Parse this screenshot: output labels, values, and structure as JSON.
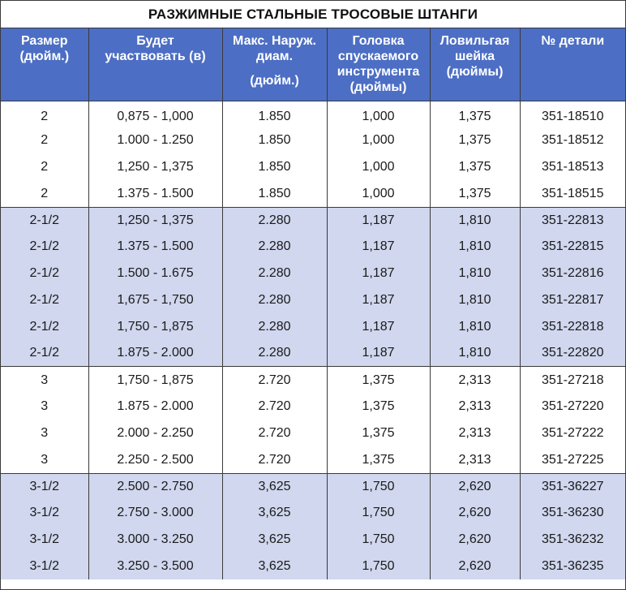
{
  "title": "РАЗЖИМНЫЕ СТАЛЬНЫЕ ТРОСОВЫЕ ШТАНГИ",
  "headers": {
    "size": [
      "Размер",
      "(дюйм.)"
    ],
    "engage": [
      "Будет",
      "участвовать (в)"
    ],
    "max_od": [
      "Макс. Наруж.",
      "диам.",
      "(дюйм.)"
    ],
    "head": [
      "Головка",
      "спускаемого",
      "инструмента",
      "(дюймы)"
    ],
    "neck": [
      "Ловильгая",
      "шейка",
      "(дюймы)"
    ],
    "part": [
      "№ детали"
    ]
  },
  "colors": {
    "header_bg": "#4c6ec4",
    "shade_bg": "#d0d7ee",
    "border": "#3a3a3a"
  },
  "rows": [
    {
      "size": "2",
      "engage": "0,875 - 1,000",
      "max_od": "1.850",
      "head": "1,000",
      "neck": "1,375",
      "part": "351-18510"
    },
    {
      "size": "2",
      "engage": "1.000 - 1.250",
      "max_od": "1.850",
      "head": "1,000",
      "neck": "1,375",
      "part": "351-18512"
    },
    {
      "size": "2",
      "engage": "1,250 - 1,375",
      "max_od": "1.850",
      "head": "1,000",
      "neck": "1,375",
      "part": "351-18513"
    },
    {
      "size": "2",
      "engage": "1.375 - 1.500",
      "max_od": "1.850",
      "head": "1,000",
      "neck": "1,375",
      "part": "351-18515"
    },
    {
      "size": "2-1/2",
      "engage": "1,250 - 1,375",
      "max_od": "2.280",
      "head": "1,187",
      "neck": "1,810",
      "part": "351-22813"
    },
    {
      "size": "2-1/2",
      "engage": "1.375 - 1.500",
      "max_od": "2.280",
      "head": "1,187",
      "neck": "1,810",
      "part": "351-22815"
    },
    {
      "size": "2-1/2",
      "engage": "1.500 - 1.675",
      "max_od": "2.280",
      "head": "1,187",
      "neck": "1,810",
      "part": "351-22816"
    },
    {
      "size": "2-1/2",
      "engage": "1,675 - 1,750",
      "max_od": "2.280",
      "head": "1,187",
      "neck": "1,810",
      "part": "351-22817"
    },
    {
      "size": "2-1/2",
      "engage": "1,750 - 1,875",
      "max_od": "2.280",
      "head": "1,187",
      "neck": "1,810",
      "part": "351-22818"
    },
    {
      "size": "2-1/2",
      "engage": "1.875 - 2.000",
      "max_od": "2.280",
      "head": "1,187",
      "neck": "1,810",
      "part": "351-22820"
    },
    {
      "size": "3",
      "engage": "1,750 - 1,875",
      "max_od": "2.720",
      "head": "1,375",
      "neck": "2,313",
      "part": "351-27218"
    },
    {
      "size": "3",
      "engage": "1.875 - 2.000",
      "max_od": "2.720",
      "head": "1,375",
      "neck": "2,313",
      "part": "351-27220"
    },
    {
      "size": "3",
      "engage": "2.000 - 2.250",
      "max_od": "2.720",
      "head": "1,375",
      "neck": "2,313",
      "part": "351-27222"
    },
    {
      "size": "3",
      "engage": "2.250 - 2.500",
      "max_od": "2.720",
      "head": "1,375",
      "neck": "2,313",
      "part": "351-27225"
    },
    {
      "size": "3-1/2",
      "engage": "2.500 - 2.750",
      "max_od": "3,625",
      "head": "1,750",
      "neck": "2,620",
      "part": "351-36227"
    },
    {
      "size": "3-1/2",
      "engage": "2.750 - 3.000",
      "max_od": "3,625",
      "head": "1,750",
      "neck": "2,620",
      "part": "351-36230"
    },
    {
      "size": "3-1/2",
      "engage": "3.000 - 3.250",
      "max_od": "3,625",
      "head": "1,750",
      "neck": "2,620",
      "part": "351-36232"
    },
    {
      "size": "3-1/2",
      "engage": "3.250 - 3.500",
      "max_od": "3,625",
      "head": "1,750",
      "neck": "2,620",
      "part": "351-36235"
    }
  ]
}
